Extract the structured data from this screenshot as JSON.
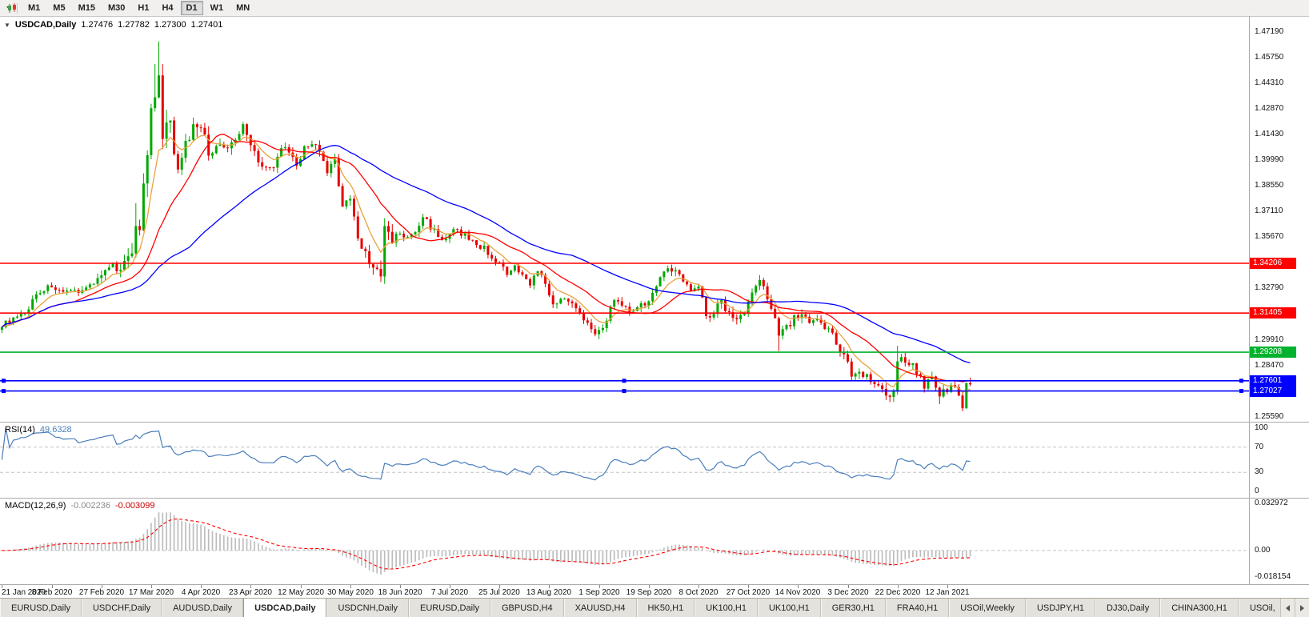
{
  "toolbar": {
    "timeframes": [
      "M1",
      "M5",
      "M15",
      "M30",
      "H1",
      "H4",
      "D1",
      "W1",
      "MN"
    ],
    "active": "D1"
  },
  "symbol_line": {
    "symbol": "USDCAD,Daily",
    "open": "1.27476",
    "high": "1.27782",
    "low": "1.27300",
    "close": "1.27401"
  },
  "rsi_panel": {
    "label": "RSI(14)",
    "value": "49.6328"
  },
  "macd_panel": {
    "label": "MACD(12,26,9)",
    "value_main": "-0.002236",
    "value_signal": "-0.003099"
  },
  "tabs": {
    "items": [
      "EURUSD,Daily",
      "USDCHF,Daily",
      "AUDUSD,Daily",
      "USDCAD,Daily",
      "USDCNH,Daily",
      "EURUSD,Daily",
      "GBPUSD,H4",
      "XAUUSD,H4",
      "HK50,H1",
      "UK100,H1",
      "UK100,H1",
      "GER30,H1",
      "FRA40,H1",
      "USOil,Weekly",
      "USDJPY,H1",
      "DJ30,Daily",
      "CHINA300,H1",
      "USOil,"
    ],
    "active_index": 3
  },
  "chart_data": {
    "type": "candlestick",
    "symbol": "USDCAD",
    "timeframe": "Daily",
    "title": "USDCAD,Daily",
    "bars": 254,
    "ylim": [
      1.253,
      1.481
    ],
    "bars_per_x_label": 13,
    "x_labels": [
      "21 Jan 2020",
      "8 Feb 2020",
      "27 Feb 2020",
      "17 Mar 2020",
      "4 Apr 2020",
      "23 Apr 2020",
      "12 May 2020",
      "30 May 2020",
      "18 Jun 2020",
      "7 Jul 2020",
      "25 Jul 2020",
      "13 Aug 2020",
      "1 Sep 2020",
      "19 Sep 2020",
      "8 Oct 2020",
      "27 Oct 2020",
      "14 Nov 2020",
      "3 Dec 2020",
      "22 Dec 2020",
      "12 Jan 2021"
    ],
    "scale_values": [
      1.4719,
      1.4575,
      1.4431,
      1.4287,
      1.4143,
      1.3999,
      1.3855,
      1.3711,
      1.3567,
      1.3423,
      1.3279,
      1.3135,
      1.2991,
      1.2847,
      1.2703,
      1.2559
    ],
    "last_candle": {
      "o": 1.27476,
      "h": 1.27782,
      "l": 1.273,
      "c": 1.27401
    },
    "close_waypoints": [
      [
        0,
        1.3075
      ],
      [
        3,
        1.3105
      ],
      [
        6,
        1.3135
      ],
      [
        9,
        1.325
      ],
      [
        13,
        1.3295
      ],
      [
        16,
        1.3245
      ],
      [
        19,
        1.3265
      ],
      [
        22,
        1.328
      ],
      [
        26,
        1.3355
      ],
      [
        29,
        1.3395
      ],
      [
        32,
        1.3415
      ],
      [
        34,
        1.35
      ],
      [
        35,
        1.366
      ],
      [
        36,
        1.363
      ],
      [
        37,
        1.384
      ],
      [
        38,
        1.405
      ],
      [
        39,
        1.4245
      ],
      [
        40,
        1.435
      ],
      [
        41,
        1.444
      ],
      [
        42,
        1.412
      ],
      [
        43,
        1.42
      ],
      [
        44,
        1.418
      ],
      [
        45,
        1.406
      ],
      [
        46,
        1.399
      ],
      [
        48,
        1.408
      ],
      [
        50,
        1.4195
      ],
      [
        52,
        1.421
      ],
      [
        54,
        1.4025
      ],
      [
        56,
        1.408
      ],
      [
        58,
        1.4055
      ],
      [
        60,
        1.409
      ],
      [
        62,
        1.415
      ],
      [
        63,
        1.422
      ],
      [
        65,
        1.4085
      ],
      [
        67,
        1.401
      ],
      [
        69,
        1.3955
      ],
      [
        71,
        1.394
      ],
      [
        73,
        1.4085
      ],
      [
        75,
        1.4025
      ],
      [
        77,
        1.397
      ],
      [
        79,
        1.406
      ],
      [
        81,
        1.411
      ],
      [
        83,
        1.403
      ],
      [
        85,
        1.393
      ],
      [
        87,
        1.399
      ],
      [
        89,
        1.3755
      ],
      [
        91,
        1.3785
      ],
      [
        93,
        1.356
      ],
      [
        95,
        1.348
      ],
      [
        97,
        1.3395
      ],
      [
        99,
        1.334
      ],
      [
        100,
        1.362
      ],
      [
        102,
        1.3545
      ],
      [
        104,
        1.359
      ],
      [
        106,
        1.3555
      ],
      [
        108,
        1.3595
      ],
      [
        110,
        1.368
      ],
      [
        112,
        1.363
      ],
      [
        114,
        1.3575
      ],
      [
        116,
        1.3545
      ],
      [
        118,
        1.3605
      ],
      [
        120,
        1.359
      ],
      [
        122,
        1.356
      ],
      [
        124,
        1.3525
      ],
      [
        126,
        1.3505
      ],
      [
        128,
        1.3455
      ],
      [
        130,
        1.342
      ],
      [
        132,
        1.335
      ],
      [
        134,
        1.3395
      ],
      [
        136,
        1.3345
      ],
      [
        138,
        1.331
      ],
      [
        140,
        1.3385
      ],
      [
        142,
        1.33
      ],
      [
        143,
        1.3225
      ],
      [
        145,
        1.3185
      ],
      [
        147,
        1.323
      ],
      [
        149,
        1.3205
      ],
      [
        151,
        1.313
      ],
      [
        153,
        1.3095
      ],
      [
        155,
        1.304
      ],
      [
        156,
        1.303
      ],
      [
        158,
        1.3105
      ],
      [
        160,
        1.323
      ],
      [
        162,
        1.3185
      ],
      [
        164,
        1.315
      ],
      [
        166,
        1.319
      ],
      [
        168,
        1.3175
      ],
      [
        170,
        1.3265
      ],
      [
        172,
        1.3345
      ],
      [
        174,
        1.3385
      ],
      [
        176,
        1.3375
      ],
      [
        178,
        1.332
      ],
      [
        180,
        1.3285
      ],
      [
        182,
        1.331
      ],
      [
        184,
        1.3125
      ],
      [
        186,
        1.3145
      ],
      [
        188,
        1.321
      ],
      [
        190,
        1.3135
      ],
      [
        192,
        1.311
      ],
      [
        194,
        1.315
      ],
      [
        196,
        1.325
      ],
      [
        198,
        1.333
      ],
      [
        200,
        1.3215
      ],
      [
        202,
        1.3135
      ],
      [
        203,
        1.304
      ],
      [
        205,
        1.3065
      ],
      [
        207,
        1.311
      ],
      [
        209,
        1.3135
      ],
      [
        211,
        1.3075
      ],
      [
        213,
        1.3095
      ],
      [
        215,
        1.306
      ],
      [
        217,
        1.3035
      ],
      [
        219,
        1.293
      ],
      [
        221,
        1.2865
      ],
      [
        222,
        1.279
      ],
      [
        224,
        1.2815
      ],
      [
        226,
        1.279
      ],
      [
        228,
        1.2755
      ],
      [
        230,
        1.2715
      ],
      [
        232,
        1.268
      ],
      [
        233,
        1.2705
      ],
      [
        234,
        1.287
      ],
      [
        236,
        1.288
      ],
      [
        238,
        1.2845
      ],
      [
        240,
        1.279
      ],
      [
        241,
        1.2735
      ],
      [
        243,
        1.278
      ],
      [
        245,
        1.268
      ],
      [
        247,
        1.2715
      ],
      [
        249,
        1.2735
      ],
      [
        250,
        1.2665
      ],
      [
        251,
        1.26
      ],
      [
        252,
        1.2745
      ],
      [
        253,
        1.27401
      ]
    ],
    "volatility_waypoints": [
      [
        0,
        0.003
      ],
      [
        25,
        0.0038
      ],
      [
        33,
        0.0085
      ],
      [
        38,
        0.013
      ],
      [
        44,
        0.011
      ],
      [
        52,
        0.008
      ],
      [
        62,
        0.006
      ],
      [
        75,
        0.005
      ],
      [
        88,
        0.0055
      ],
      [
        95,
        0.0065
      ],
      [
        100,
        0.0075
      ],
      [
        108,
        0.0045
      ],
      [
        120,
        0.0038
      ],
      [
        140,
        0.0036
      ],
      [
        156,
        0.0042
      ],
      [
        172,
        0.004
      ],
      [
        184,
        0.005
      ],
      [
        198,
        0.0045
      ],
      [
        203,
        0.006
      ],
      [
        212,
        0.004
      ],
      [
        222,
        0.0045
      ],
      [
        234,
        0.0055
      ],
      [
        242,
        0.004
      ],
      [
        248,
        0.0048
      ],
      [
        253,
        0.0035
      ]
    ],
    "wick_overrides": [
      {
        "i": 35,
        "high": 1.3758
      },
      {
        "i": 40,
        "high": 1.454
      },
      {
        "i": 41,
        "high": 1.4668
      },
      {
        "i": 99,
        "low": 1.3315
      },
      {
        "i": 156,
        "low": 1.2994
      },
      {
        "i": 203,
        "low": 1.2928
      },
      {
        "i": 234,
        "high": 1.2957
      },
      {
        "i": 245,
        "low": 1.263
      },
      {
        "i": 251,
        "low": 1.2589
      }
    ],
    "moving_averages": [
      {
        "name": "fast",
        "type": "ema",
        "period": 8,
        "color": "#E8A33D"
      },
      {
        "name": "medium",
        "type": "sma",
        "period": 20,
        "color": "#FF0000"
      },
      {
        "name": "slow",
        "type": "sma",
        "period": 50,
        "color": "#0000FF"
      }
    ],
    "hlines": [
      {
        "price": 1.34206,
        "label": "1.34206",
        "color": "#FF0000"
      },
      {
        "price": 1.31405,
        "label": "1.31405",
        "color": "#FF0000"
      },
      {
        "price": 1.29208,
        "label": "1.29208",
        "color": "#00B22D"
      },
      {
        "price": 1.27601,
        "label": "1.27601",
        "color": "#0000FF",
        "selected": true
      },
      {
        "price": 1.27027,
        "label": "1.27027",
        "color": "#0000FF",
        "selected": true
      }
    ],
    "indicators": {
      "rsi": {
        "period": 14,
        "current": 49.6328,
        "levels": [
          70,
          30
        ],
        "scale_labels": [
          100,
          70,
          30,
          0
        ],
        "color": "#4A7EBB"
      },
      "macd": {
        "fast": 12,
        "slow": 26,
        "signal": 9,
        "current_main": -0.002236,
        "current_signal": -0.003099,
        "ylim": [
          -0.019,
          0.034
        ],
        "scale_labels": [
          {
            "text": "0.032972",
            "value": 0.032972
          },
          {
            "text": "0.00",
            "value": 0
          },
          {
            "text": "-0.018154",
            "value": -0.018154
          }
        ],
        "histogram_color": "#BDBDBD",
        "signal_color": "#FF0000"
      }
    },
    "colors": {
      "up": "#00A800",
      "down": "#E60000",
      "background": "#FFFFFF"
    }
  }
}
